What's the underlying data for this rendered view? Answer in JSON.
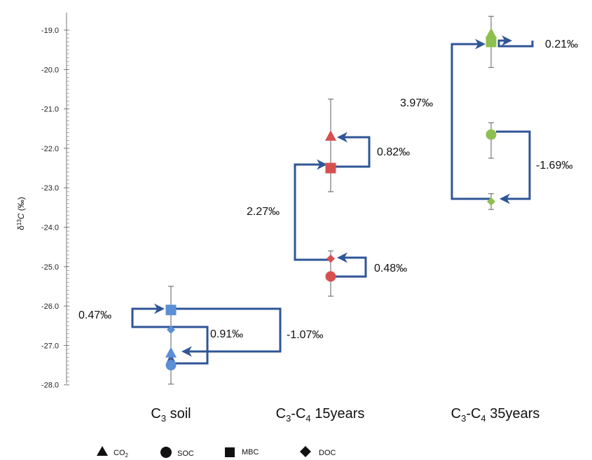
{
  "chart_data": {
    "type": "scatter",
    "ylabel": "δ13C (‰)",
    "ylim": [
      -28.0,
      -18.6
    ],
    "y_ticks": [
      "-19.0",
      "-20.0",
      "-21.0",
      "-22.0",
      "-23.0",
      "-24.0",
      "-25.0",
      "-26.0",
      "-27.0",
      "-28.0"
    ],
    "y_tick_values": [
      -19,
      -20,
      -21,
      -22,
      -23,
      -24,
      -25,
      -26,
      -27,
      -28
    ],
    "groups": [
      {
        "label_main": "C",
        "label_sub1": "3",
        "label_mid": "",
        "label_sub2": "",
        "label_tail": " soil",
        "color": "#5b8fd6"
      },
      {
        "label_main": "C",
        "label_sub1": "3",
        "label_mid": "-C",
        "label_sub2": "4",
        "label_tail": " 15years",
        "color": "#d65050"
      },
      {
        "label_main": "C",
        "label_sub1": "3",
        "label_mid": "-C",
        "label_sub2": "4",
        "label_tail": " 35years",
        "color": "#8dc04f"
      }
    ],
    "series": [
      {
        "name": "CO2",
        "marker": "triangle",
        "values": [
          -27.2,
          -21.7,
          -19.1
        ]
      },
      {
        "name": "SOC",
        "marker": "circle",
        "values": [
          -27.5,
          -25.25,
          -21.65
        ]
      },
      {
        "name": "MBC",
        "marker": "square",
        "values": [
          -26.1,
          -22.5,
          -19.3
        ]
      },
      {
        "name": "DOC",
        "marker": "diamond",
        "values": [
          -26.6,
          -24.8,
          -23.35
        ]
      }
    ],
    "error_bars": [
      {
        "group": 0,
        "low": -27.98,
        "high": -25.5
      },
      {
        "group": 1,
        "low": -23.1,
        "high": -20.75
      },
      {
        "group": 1,
        "low": -25.75,
        "high": -24.6
      },
      {
        "group": 2,
        "low": -19.95,
        "high": -18.65
      },
      {
        "group": 2,
        "low": -22.25,
        "high": -21.35
      },
      {
        "group": 2,
        "low": -23.55,
        "high": -23.15
      }
    ],
    "annotations": [
      {
        "text": "0.47‰"
      },
      {
        "text": "0.91‰"
      },
      {
        "text": "-1.07‰"
      },
      {
        "text": "0.82‰"
      },
      {
        "text": "2.27‰"
      },
      {
        "text": "0.48‰"
      },
      {
        "text": "3.97‰"
      },
      {
        "text": "0.21‰"
      },
      {
        "text": "-1.69‰"
      }
    ],
    "legend": {
      "placement": "bottom-left",
      "items": [
        {
          "marker": "triangle",
          "main": "CO",
          "sub": "2"
        },
        {
          "marker": "circle",
          "main": "SOC",
          "sub": ""
        },
        {
          "marker": "square",
          "main": "MBC",
          "sub": ""
        },
        {
          "marker": "diamond",
          "main": "DOC",
          "sub": ""
        }
      ]
    },
    "arrow_color": "#2f5597"
  }
}
